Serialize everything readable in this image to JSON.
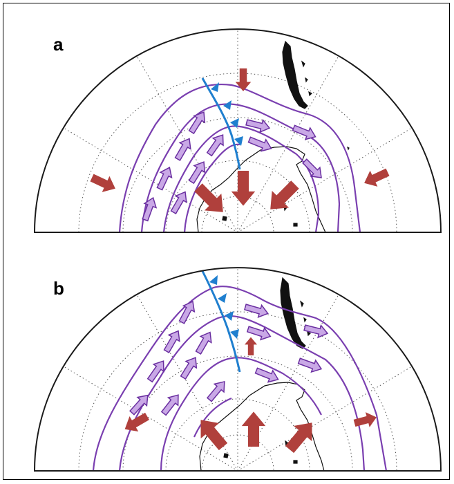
{
  "panels": [
    {
      "id": "a",
      "label": "a"
    },
    {
      "id": "b",
      "label": "b"
    }
  ],
  "colors": {
    "boundary": "#1a1a1a",
    "grid": "#555555",
    "land": "#111111",
    "streamline": "#7a3fb0",
    "flow_arrow_fill": "#c9a8e6",
    "flow_arrow_stroke": "#6a2fa0",
    "wind_arrow": "#b0403c",
    "front": "#1f7fcf"
  },
  "icons": {
    "flow_arrow": "purple-flow-arrow-icon",
    "wind_arrow": "red-wind-arrow-icon",
    "front": "cold-front-line-icon"
  }
}
